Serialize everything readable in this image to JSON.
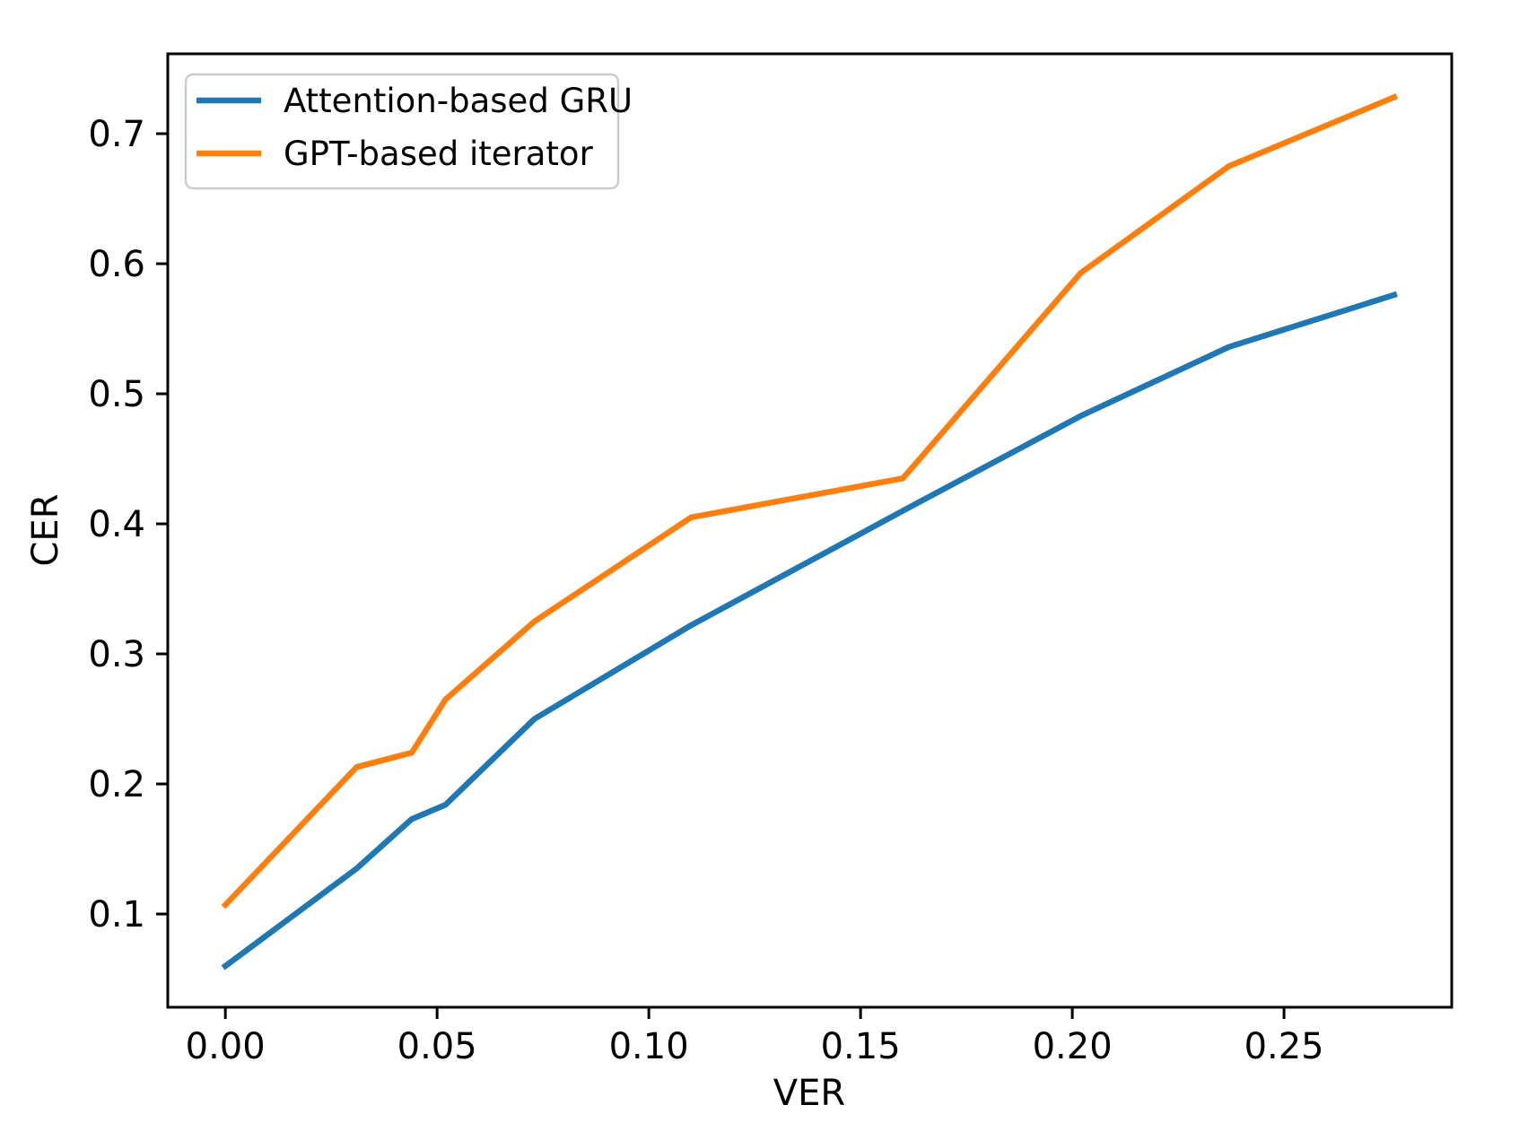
{
  "figure": {
    "background_color": "#ffffff",
    "text_color": "#000000",
    "spine_color": "#000000",
    "legend_border_color": "#cccccc"
  },
  "chart_data": {
    "type": "line",
    "title": "",
    "xlabel": "VER",
    "ylabel": "CER",
    "grid": false,
    "legend_position": "upper-left",
    "xlim": [
      -0.0136,
      0.2896
    ],
    "ylim": [
      0.0283,
      0.7614
    ],
    "x_ticks": [
      {
        "value": 0.0,
        "label": "0.00"
      },
      {
        "value": 0.05,
        "label": "0.05"
      },
      {
        "value": 0.1,
        "label": "0.10"
      },
      {
        "value": 0.15,
        "label": "0.15"
      },
      {
        "value": 0.2,
        "label": "0.20"
      },
      {
        "value": 0.25,
        "label": "0.25"
      }
    ],
    "y_ticks": [
      {
        "value": 0.1,
        "label": "0.1"
      },
      {
        "value": 0.2,
        "label": "0.2"
      },
      {
        "value": 0.3,
        "label": "0.3"
      },
      {
        "value": 0.4,
        "label": "0.4"
      },
      {
        "value": 0.5,
        "label": "0.5"
      },
      {
        "value": 0.6,
        "label": "0.6"
      },
      {
        "value": 0.7,
        "label": "0.7"
      }
    ],
    "x": [
      0.0,
      0.031,
      0.044,
      0.052,
      0.073,
      0.11,
      0.16,
      0.202,
      0.237,
      0.276
    ],
    "series": [
      {
        "name": "Attention-based GRU",
        "color": "#1f77b4",
        "y": [
          0.06,
          0.135,
          0.173,
          0.184,
          0.25,
          0.322,
          0.41,
          0.483,
          0.536,
          0.576
        ]
      },
      {
        "name": "GPT-based iterator",
        "color": "#ff7f0e",
        "y": [
          0.107,
          0.213,
          0.224,
          0.265,
          0.325,
          0.405,
          0.435,
          0.593,
          0.675,
          0.728
        ]
      }
    ]
  }
}
